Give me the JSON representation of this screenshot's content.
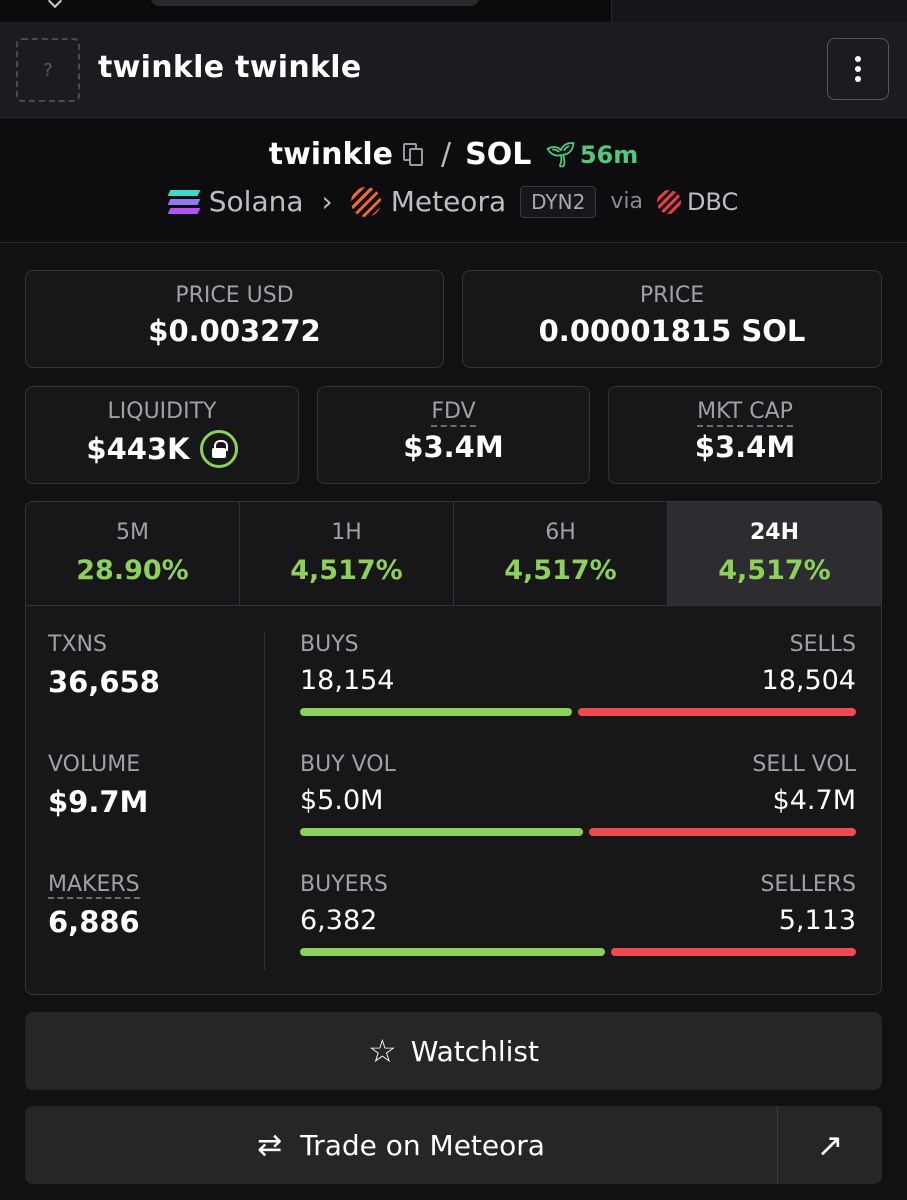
{
  "header": {
    "thumb_placeholder": "?",
    "token_name": "twinkle twinkle"
  },
  "pair": {
    "base": "twinkle",
    "separator": "/",
    "quote": "SOL",
    "age": "56m",
    "chain": "Solana",
    "dex": "Meteora",
    "pool_tag": "DYN2",
    "via": "via",
    "launchpad": "DBC"
  },
  "prices": {
    "price_usd_label": "PRICE USD",
    "price_usd": "$0.003272",
    "price_label": "PRICE",
    "price": "0.00001815 SOL"
  },
  "metrics": {
    "liquidity_label": "LIQUIDITY",
    "liquidity": "$443K",
    "fdv_label": "FDV",
    "fdv": "$3.4M",
    "mktcap_label": "MKT CAP",
    "mktcap": "$3.4M"
  },
  "timeframes": [
    {
      "label": "5M",
      "change": "28.90%"
    },
    {
      "label": "1H",
      "change": "4,517%"
    },
    {
      "label": "6H",
      "change": "4,517%"
    },
    {
      "label": "24H",
      "change": "4,517%",
      "active": true
    }
  ],
  "stats": {
    "txns_label": "TXNS",
    "txns": "36,658",
    "volume_label": "VOLUME",
    "volume": "$9.7M",
    "makers_label": "MAKERS",
    "makers": "6,886",
    "buys_label": "BUYS",
    "buys": "18,154",
    "sells_label": "SELLS",
    "sells": "18,504",
    "buys_ratio": 0.495,
    "buyvol_label": "BUY VOL",
    "buyvol": "$5.0M",
    "sellvol_label": "SELL VOL",
    "sellvol": "$4.7M",
    "buyvol_ratio": 0.515,
    "buyers_label": "BUYERS",
    "buyers": "6,382",
    "sellers_label": "SELLERS",
    "sellers": "5,113",
    "buyers_ratio": 0.555
  },
  "actions": {
    "watchlist": "Watchlist",
    "trade": "Trade on Meteora"
  },
  "colors": {
    "positive": "#8dd05a",
    "negative": "#ec4b52",
    "age": "#4fca7c"
  }
}
